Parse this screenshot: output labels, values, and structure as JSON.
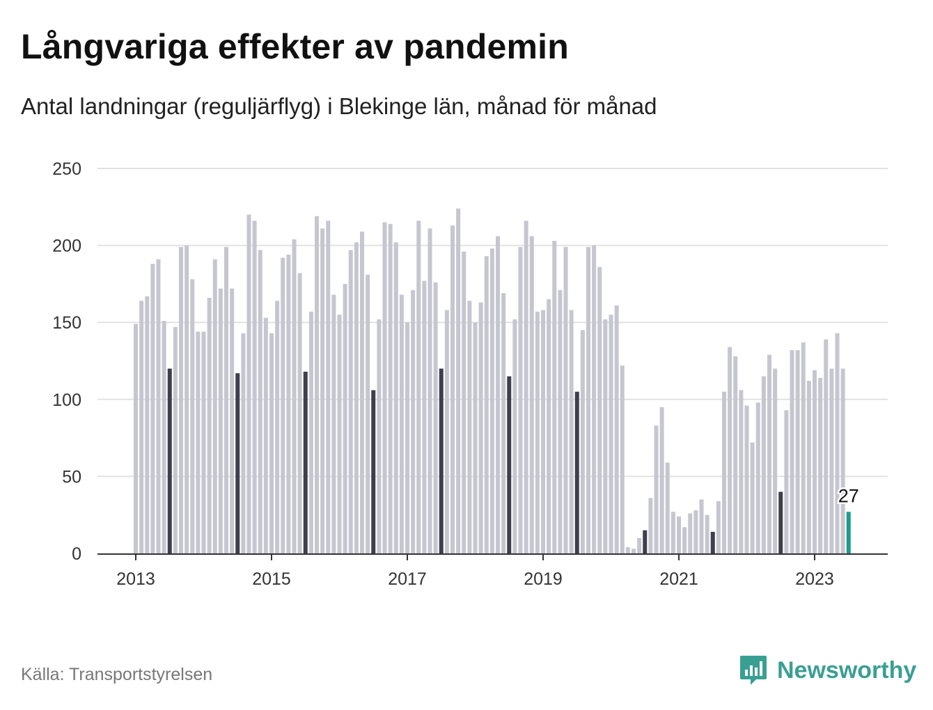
{
  "title": "Långvariga effekter av pandemin",
  "subtitle": "Antal landningar (reguljärflyg) i Blekinge län, månad för månad",
  "source": "Källa: Transportstyrelsen",
  "brand": "Newsworthy",
  "colors": {
    "bar": "#c6c6d0",
    "highlight_july": "#3f3e4c",
    "latest": "#1a9c8e",
    "grid": "#e2e2e2",
    "axis": "#333333",
    "brand": "#3a9f93"
  },
  "chart_data": {
    "type": "bar",
    "title": "Långvariga effekter av pandemin",
    "subtitle": "Antal landningar (reguljärflyg) i Blekinge län, månad för månad",
    "xlabel": "",
    "ylabel": "",
    "x_start": "2013-01",
    "x_end": "2023-07",
    "ylim": [
      0,
      250
    ],
    "yticks": [
      0,
      50,
      100,
      150,
      200,
      250
    ],
    "xticks": [
      "2013",
      "2015",
      "2017",
      "2019",
      "2021",
      "2023"
    ],
    "grid": true,
    "legend": "none",
    "highlight": "July of each year shown in dark; latest month shown in teal with its value labelled",
    "latest_label": "27",
    "values": [
      149,
      164,
      167,
      188,
      191,
      151,
      120,
      147,
      199,
      200,
      178,
      144,
      144,
      166,
      191,
      172,
      199,
      172,
      117,
      143,
      220,
      216,
      197,
      153,
      143,
      164,
      192,
      194,
      204,
      182,
      118,
      157,
      219,
      211,
      216,
      168,
      155,
      175,
      197,
      202,
      209,
      181,
      106,
      152,
      215,
      214,
      202,
      168,
      150,
      171,
      216,
      177,
      211,
      176,
      120,
      158,
      213,
      224,
      196,
      164,
      150,
      163,
      193,
      198,
      206,
      169,
      115,
      152,
      199,
      216,
      206,
      157,
      158,
      165,
      203,
      171,
      199,
      158,
      105,
      145,
      199,
      200,
      186,
      152,
      155,
      161,
      122,
      4,
      3,
      10,
      15,
      36,
      83,
      95,
      59,
      27,
      24,
      17,
      26,
      28,
      35,
      25,
      14,
      34,
      105,
      134,
      128,
      106,
      96,
      72,
      98,
      115,
      129,
      120,
      40,
      93,
      132,
      132,
      137,
      112,
      119,
      114,
      139,
      120,
      143,
      120,
      27
    ]
  }
}
